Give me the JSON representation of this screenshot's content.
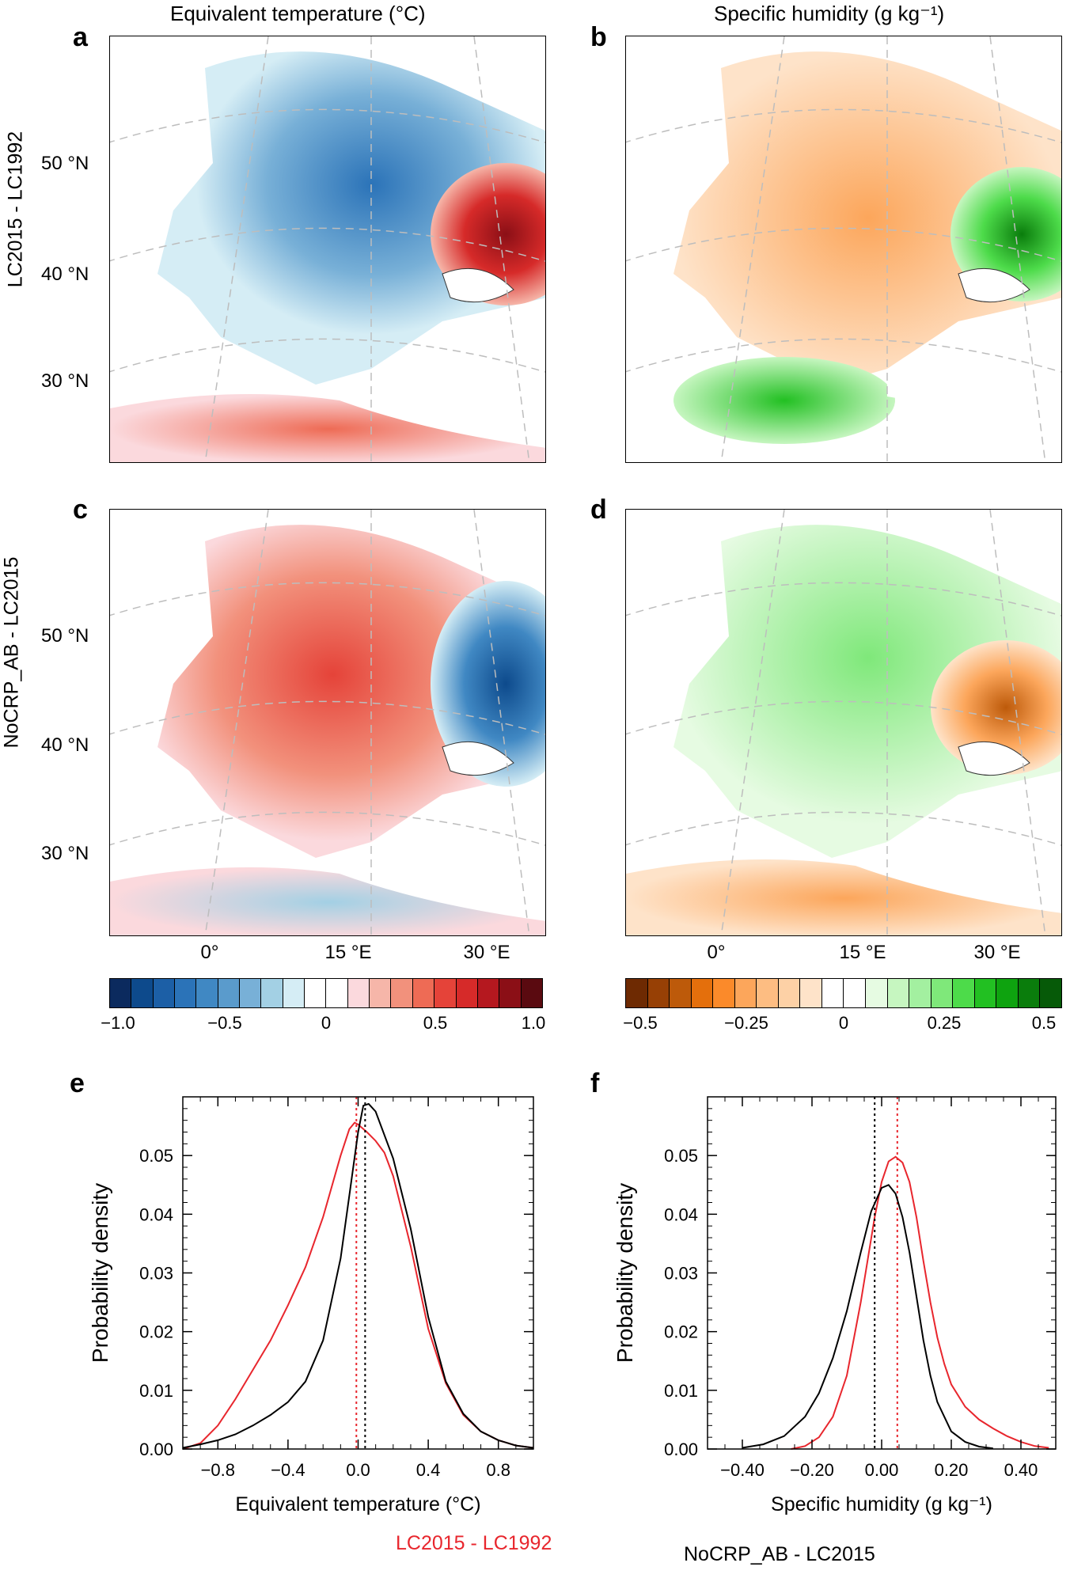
{
  "figure": {
    "col_titles": [
      "Equivalent temperature (°C)",
      "Specific humidity (g kg⁻¹)"
    ],
    "row_labels": [
      "LC2015 - LC1992",
      "NoCRP_AB - LC2015"
    ],
    "panel_letters": [
      "a",
      "b",
      "c",
      "d",
      "e",
      "f"
    ],
    "lat_labels": [
      "50 °N",
      "40 °N",
      "30 °N"
    ],
    "lon_labels": [
      "0°",
      "15 °E",
      "30 °E"
    ],
    "legend": [
      {
        "label": "LC2015 - LC1992",
        "color": "#e8262d"
      },
      {
        "label": "NoCRP_AB - LC2015",
        "color": "#000000"
      }
    ]
  },
  "colorbars": {
    "temperature": {
      "ticks": [
        "−1.0",
        "−0.5",
        "0",
        "0.5",
        "1.0"
      ],
      "colors": [
        "#0b2a5e",
        "#0d4a8c",
        "#1c5fa6",
        "#2b73b8",
        "#4088c3",
        "#5a9bcc",
        "#78b0d7",
        "#a3d0e4",
        "#d5edf5",
        "#ffffff",
        "#ffffff",
        "#fbd9dd",
        "#f6b6a9",
        "#f2917c",
        "#ee6b55",
        "#e54339",
        "#d62a29",
        "#b5181f",
        "#8b0f16",
        "#5a0a10"
      ]
    },
    "humidity": {
      "ticks": [
        "−0.5",
        "−0.25",
        "0",
        "0.25",
        "0.5"
      ],
      "colors": [
        "#6e2a02",
        "#974005",
        "#bd5a0a",
        "#e46f0c",
        "#fb8a2a",
        "#fca65b",
        "#fdbd82",
        "#fdd1a6",
        "#fee3c9",
        "#ffffff",
        "#ffffff",
        "#e6fbe2",
        "#c6f6c0",
        "#a3f0a0",
        "#7fe87a",
        "#4ddb4a",
        "#22c022",
        "#0ea30f",
        "#0a7d0c",
        "#065a08"
      ]
    }
  },
  "chart_data": [
    {
      "type": "line",
      "panel": "e",
      "xlabel": "Equivalent temperature (°C)",
      "ylabel": "Probability density",
      "xlim": [
        -1.0,
        1.0
      ],
      "ylim": [
        0.0,
        0.06
      ],
      "xticks": [
        "−0.8",
        "−0.4",
        "0.0",
        "0.4",
        "0.8"
      ],
      "xtick_values": [
        -0.8,
        -0.4,
        0.0,
        0.4,
        0.8
      ],
      "yticks": [
        "0.00",
        "0.01",
        "0.02",
        "0.03",
        "0.04",
        "0.05"
      ],
      "ytick_values": [
        0.0,
        0.01,
        0.02,
        0.03,
        0.04,
        0.05
      ],
      "series": [
        {
          "color": "#e8262d",
          "mean": -0.01,
          "x": [
            -1.0,
            -0.9,
            -0.8,
            -0.7,
            -0.6,
            -0.5,
            -0.4,
            -0.3,
            -0.2,
            -0.1,
            -0.05,
            -0.02,
            0.0,
            0.05,
            0.1,
            0.15,
            0.2,
            0.3,
            0.4,
            0.5,
            0.6,
            0.7,
            0.8,
            0.9,
            1.0
          ],
          "y": [
            0.0,
            0.001,
            0.004,
            0.0085,
            0.0135,
            0.0185,
            0.0245,
            0.031,
            0.0395,
            0.05,
            0.0545,
            0.0556,
            0.0553,
            0.054,
            0.0525,
            0.0505,
            0.0465,
            0.0345,
            0.0205,
            0.0112,
            0.0058,
            0.003,
            0.0015,
            0.0006,
            0.0002
          ]
        },
        {
          "color": "#000000",
          "mean": 0.04,
          "x": [
            -1.0,
            -0.9,
            -0.8,
            -0.7,
            -0.6,
            -0.5,
            -0.4,
            -0.3,
            -0.2,
            -0.1,
            0.0,
            0.03,
            0.06,
            0.1,
            0.2,
            0.3,
            0.4,
            0.5,
            0.6,
            0.7,
            0.8,
            0.9,
            1.0
          ],
          "y": [
            0.0002,
            0.0008,
            0.0015,
            0.0025,
            0.004,
            0.0058,
            0.008,
            0.0115,
            0.0185,
            0.0325,
            0.054,
            0.0585,
            0.0588,
            0.0575,
            0.0495,
            0.0375,
            0.0225,
            0.0115,
            0.006,
            0.003,
            0.0015,
            0.0006,
            0.0002
          ]
        }
      ]
    },
    {
      "type": "line",
      "panel": "f",
      "xlabel": "Specific humidity (g kg⁻¹)",
      "ylabel": "Probability density",
      "xlim": [
        -0.5,
        0.5
      ],
      "ylim": [
        0.0,
        0.06
      ],
      "xticks": [
        "−0.40",
        "−0.20",
        "0.00",
        "0.20",
        "0.40"
      ],
      "xtick_values": [
        -0.4,
        -0.2,
        0.0,
        0.2,
        0.4
      ],
      "yticks": [
        "0.00",
        "0.01",
        "0.02",
        "0.03",
        "0.04",
        "0.05"
      ],
      "ytick_values": [
        0.0,
        0.01,
        0.02,
        0.03,
        0.04,
        0.05
      ],
      "series": [
        {
          "color": "#e8262d",
          "mean": 0.045,
          "x": [
            -0.26,
            -0.22,
            -0.18,
            -0.14,
            -0.1,
            -0.06,
            -0.02,
            0.0,
            0.02,
            0.04,
            0.06,
            0.08,
            0.1,
            0.12,
            0.14,
            0.16,
            0.18,
            0.2,
            0.24,
            0.28,
            0.32,
            0.36,
            0.4,
            0.44,
            0.48
          ],
          "y": [
            0.0,
            0.0005,
            0.002,
            0.0055,
            0.0125,
            0.025,
            0.0395,
            0.0455,
            0.049,
            0.0498,
            0.0488,
            0.0455,
            0.0395,
            0.032,
            0.025,
            0.019,
            0.0145,
            0.011,
            0.0072,
            0.005,
            0.0035,
            0.0022,
            0.0012,
            0.0005,
            0.0002
          ]
        },
        {
          "color": "#000000",
          "mean": -0.02,
          "x": [
            -0.4,
            -0.34,
            -0.28,
            -0.22,
            -0.18,
            -0.14,
            -0.1,
            -0.06,
            -0.03,
            0.0,
            0.02,
            0.04,
            0.06,
            0.08,
            0.1,
            0.12,
            0.14,
            0.16,
            0.2,
            0.24,
            0.28,
            0.32
          ],
          "y": [
            0.0002,
            0.0008,
            0.0022,
            0.0055,
            0.0095,
            0.0155,
            0.0235,
            0.0335,
            0.0405,
            0.0445,
            0.045,
            0.0435,
            0.0395,
            0.0335,
            0.026,
            0.0185,
            0.0125,
            0.008,
            0.003,
            0.0012,
            0.0004,
            0.0001
          ]
        }
      ]
    }
  ]
}
